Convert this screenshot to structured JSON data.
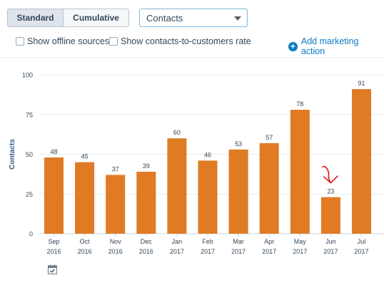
{
  "toolbar": {
    "standard_label": "Standard",
    "cumulative_label": "Cumulative",
    "metric_selected": "Contacts",
    "offline_label": "Show offline sources",
    "rate_label": "Show contacts-to-customers rate",
    "add_action_label": "Add marketing action"
  },
  "chart_data": {
    "type": "bar",
    "ylabel": "Contacts",
    "ylim": [
      0,
      100
    ],
    "yticks": [
      0,
      25,
      50,
      75,
      100
    ],
    "grid": true,
    "bar_color": "#e07a24",
    "categories": [
      [
        "Sep",
        "2016"
      ],
      [
        "Oct",
        "2016"
      ],
      [
        "Nov",
        "2016"
      ],
      [
        "Dec",
        "2016"
      ],
      [
        "Jan",
        "2017"
      ],
      [
        "Feb",
        "2017"
      ],
      [
        "Mar",
        "2017"
      ],
      [
        "Apr",
        "2017"
      ],
      [
        "May",
        "2017"
      ],
      [
        "Jun",
        "2017"
      ],
      [
        "Jul",
        "2017"
      ]
    ],
    "values": [
      48,
      45,
      37,
      39,
      60,
      46,
      53,
      57,
      78,
      23,
      91
    ],
    "annotation": {
      "type": "hand-drawn red arrow",
      "target": "Jun 2017",
      "color": "#e0131b"
    }
  },
  "icons": {
    "calendar": "calendar-check-icon",
    "add": "plus-circle-icon"
  }
}
